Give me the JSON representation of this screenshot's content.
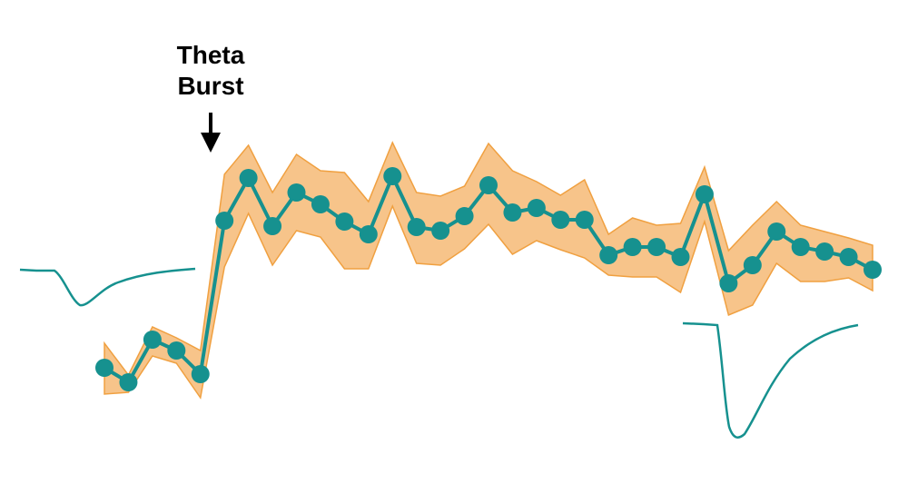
{
  "chart_data": {
    "type": "line",
    "annotation": [
      "Theta",
      "Burst"
    ],
    "x": [
      0,
      1,
      2,
      3,
      4,
      5,
      6,
      7,
      8,
      9,
      10,
      11,
      12,
      13,
      14,
      15,
      16,
      17,
      18,
      19,
      20,
      21,
      22,
      23,
      24,
      25,
      26,
      27,
      28,
      29,
      30,
      31,
      32
    ],
    "xlim": [
      0,
      32
    ],
    "ylim": [
      0,
      400
    ],
    "series": [
      {
        "color": "#16918f",
        "band_color": "#f7c48a",
        "band_edge_color": "#f0a040",
        "values": [
          95,
          79,
          126,
          114,
          88,
          257,
          304,
          251,
          288,
          275,
          256,
          242,
          306,
          250,
          246,
          262,
          296,
          266,
          271,
          258,
          258,
          219,
          228,
          228,
          217,
          286,
          188,
          208,
          245,
          228,
          223,
          217,
          203
        ],
        "upper": [
          122,
          87,
          140,
          128,
          114,
          308,
          340,
          288,
          330,
          312,
          310,
          278,
          343,
          288,
          284,
          295,
          342,
          312,
          300,
          285,
          302,
          242,
          260,
          252,
          254,
          316,
          224,
          252,
          278,
          252,
          245,
          238,
          230
        ],
        "lower": [
          66,
          68,
          108,
          100,
          62,
          206,
          265,
          208,
          246,
          239,
          204,
          204,
          273,
          210,
          208,
          226,
          253,
          220,
          235,
          225,
          216,
          197,
          195,
          195,
          178,
          256,
          153,
          164,
          210,
          190,
          190,
          194,
          180
        ]
      }
    ]
  }
}
